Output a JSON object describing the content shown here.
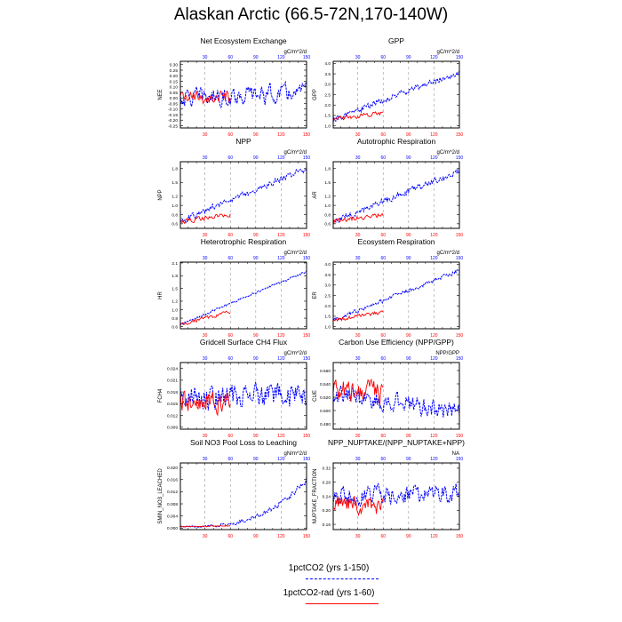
{
  "title": "Alaskan Arctic (66.5-72N,170-140W)",
  "colors": {
    "run_a": "#0000ff",
    "run_b": "#ff0000"
  },
  "legend": {
    "run_a": "1pctCO2 (yrs 1-150)",
    "run_b": "1pctCO2-rad (yrs 1-60)"
  },
  "chart_data": [
    {
      "type": "line",
      "title": "Net Ecosystem Exchange",
      "ylabel": "NEE",
      "units": "gC/m^2/d",
      "x_top_ticks": [
        30,
        60,
        90,
        120,
        150
      ],
      "x_bottom_ticks": [
        30,
        60,
        90,
        120,
        150
      ],
      "xlim": [
        1,
        150
      ],
      "y_ticks": [
        "0.30",
        "0.25",
        "0.20",
        "0.15",
        "0.10",
        "0.05",
        "0.00",
        "-0.05",
        "-0.10",
        "-0.15",
        "-0.20",
        "-0.25"
      ],
      "ylim": [
        -0.27,
        0.33
      ],
      "series": [
        {
          "run": "run_a",
          "x_range": [
            1,
            150
          ],
          "start": 0.0,
          "end": 0.05,
          "noise": 0.24
        },
        {
          "run": "run_b",
          "x_range": [
            1,
            60
          ],
          "start": 0.0,
          "end": 0.0,
          "noise": 0.16
        }
      ]
    },
    {
      "type": "line",
      "title": "GPP",
      "ylabel": "GPP",
      "units": "gC/m^2/d",
      "x_top_ticks": [
        30,
        60,
        90,
        120,
        150
      ],
      "x_bottom_ticks": [
        30,
        60,
        90,
        120,
        150
      ],
      "xlim": [
        1,
        150
      ],
      "y_ticks": [
        "4.0",
        "3.5",
        "3.0",
        "2.5",
        "2.0",
        "1.5",
        "1.0"
      ],
      "ylim": [
        0.9,
        4.1
      ],
      "series": [
        {
          "run": "run_a",
          "x_range": [
            1,
            150
          ],
          "start": 1.3,
          "end": 3.6,
          "noise": 0.45
        },
        {
          "run": "run_b",
          "x_range": [
            1,
            60
          ],
          "start": 1.3,
          "end": 1.6,
          "noise": 0.35
        }
      ]
    },
    {
      "type": "line",
      "title": "NPP",
      "ylabel": "NPP",
      "units": "gC/m^2/d",
      "x_top_ticks": [
        30,
        60,
        90,
        120,
        150
      ],
      "x_bottom_ticks": [
        30,
        60,
        90,
        120,
        150
      ],
      "xlim": [
        1,
        150
      ],
      "y_ticks": [
        "1.8",
        "1.5",
        "1.2",
        "1.0",
        "0.8",
        "0.6"
      ],
      "ylim": [
        0.5,
        1.95
      ],
      "series": [
        {
          "run": "run_a",
          "x_range": [
            1,
            150
          ],
          "start": 0.65,
          "end": 1.8,
          "noise": 0.2
        },
        {
          "run": "run_b",
          "x_range": [
            1,
            60
          ],
          "start": 0.65,
          "end": 0.8,
          "noise": 0.15
        }
      ]
    },
    {
      "type": "line",
      "title": "Autotrophic Respiration",
      "ylabel": "AR",
      "units": "gC/m^2/d",
      "x_top_ticks": [
        30,
        60,
        90,
        120,
        150
      ],
      "x_bottom_ticks": [
        30,
        60,
        90,
        120,
        150
      ],
      "xlim": [
        1,
        150
      ],
      "y_ticks": [
        "1.8",
        "1.5",
        "1.2",
        "1.0",
        "0.8",
        "0.6"
      ],
      "ylim": [
        0.5,
        1.95
      ],
      "series": [
        {
          "run": "run_a",
          "x_range": [
            1,
            150
          ],
          "start": 0.65,
          "end": 1.75,
          "noise": 0.2
        },
        {
          "run": "run_b",
          "x_range": [
            1,
            60
          ],
          "start": 0.65,
          "end": 0.8,
          "noise": 0.15
        }
      ]
    },
    {
      "type": "line",
      "title": "Heterotrophic Respiration",
      "ylabel": "HR",
      "units": "gC/m^2/d",
      "x_top_ticks": [
        30,
        60,
        90,
        120,
        150
      ],
      "x_bottom_ticks": [
        30,
        60,
        90,
        120,
        150
      ],
      "xlim": [
        1,
        150
      ],
      "y_ticks": [
        "2.1",
        "1.8",
        "1.5",
        "1.2",
        "1.0",
        "0.8",
        "0.6"
      ],
      "ylim": [
        0.55,
        2.12
      ],
      "series": [
        {
          "run": "run_a",
          "x_range": [
            1,
            150
          ],
          "start": 0.65,
          "end": 1.9,
          "noise": 0.08
        },
        {
          "run": "run_b",
          "x_range": [
            1,
            60
          ],
          "start": 0.65,
          "end": 0.95,
          "noise": 0.12
        }
      ]
    },
    {
      "type": "line",
      "title": "Ecosystem Respiration",
      "ylabel": "ER",
      "units": "gC/m^2/d",
      "x_top_ticks": [
        30,
        60,
        90,
        120,
        150
      ],
      "x_bottom_ticks": [
        30,
        60,
        90,
        120,
        150
      ],
      "xlim": [
        1,
        150
      ],
      "y_ticks": [
        "4.0",
        "3.5",
        "3.0",
        "2.5",
        "2.0",
        "1.5",
        "1.0"
      ],
      "ylim": [
        0.9,
        4.1
      ],
      "series": [
        {
          "run": "run_a",
          "x_range": [
            1,
            150
          ],
          "start": 1.3,
          "end": 3.7,
          "noise": 0.3
        },
        {
          "run": "run_b",
          "x_range": [
            1,
            60
          ],
          "start": 1.3,
          "end": 1.7,
          "noise": 0.3
        }
      ]
    },
    {
      "type": "line",
      "title": "Gridcell Surface CH4 Flux",
      "ylabel": "FCH4",
      "units": "gC/m^2/d",
      "x_top_ticks": [
        30,
        60,
        90,
        120,
        150
      ],
      "x_bottom_ticks": [
        30,
        60,
        90,
        120,
        150
      ],
      "xlim": [
        1,
        150
      ],
      "y_ticks": [
        "0.024",
        "0.021",
        "0.018",
        "0.015",
        "0.012",
        "0.009"
      ],
      "ylim": [
        0.0085,
        0.0255
      ],
      "series": [
        {
          "run": "run_a",
          "x_range": [
            1,
            150
          ],
          "start": 0.0165,
          "end": 0.017,
          "noise": 0.009
        },
        {
          "run": "run_b",
          "x_range": [
            1,
            60
          ],
          "start": 0.0155,
          "end": 0.0155,
          "noise": 0.008
        }
      ]
    },
    {
      "type": "line",
      "title": "Carbon Use Efficiency (NPP/GPP)",
      "ylabel": "CUE",
      "units": "NPP/GPP",
      "x_top_ticks": [
        30,
        60,
        90,
        120,
        150
      ],
      "x_bottom_ticks": [
        30,
        60,
        90,
        120,
        150
      ],
      "xlim": [
        1,
        150
      ],
      "y_ticks": [
        "0.560",
        "0.540",
        "0.520",
        "0.500",
        "0.480"
      ],
      "ylim": [
        0.472,
        0.572
      ],
      "series": [
        {
          "run": "run_a",
          "x_range": [
            1,
            150
          ],
          "start": 0.525,
          "end": 0.498,
          "noise": 0.04
        },
        {
          "run": "run_b",
          "x_range": [
            1,
            60
          ],
          "start": 0.53,
          "end": 0.525,
          "noise": 0.05
        }
      ]
    },
    {
      "type": "line",
      "title": "Soil NO3 Pool Loss to Leaching",
      "ylabel": "SMIN_NO3_LEACHED",
      "units": "gN/m^2/d",
      "x_top_ticks": [
        30,
        60,
        90,
        120,
        150
      ],
      "x_bottom_ticks": [
        30,
        60,
        90,
        120,
        150
      ],
      "xlim": [
        1,
        150
      ],
      "y_ticks": [
        "0.020",
        "0.016",
        "0.012",
        "0.008",
        "0.004",
        "0.000"
      ],
      "ylim": [
        -0.0005,
        0.0215
      ],
      "series": [
        {
          "run": "run_a",
          "x_range": [
            1,
            150
          ],
          "start": 0.0005,
          "end": 0.016,
          "noise": 0.003,
          "shape": "exp"
        },
        {
          "run": "run_b",
          "x_range": [
            1,
            60
          ],
          "start": 0.0004,
          "end": 0.0008,
          "noise": 0.0004
        }
      ]
    },
    {
      "type": "line",
      "title": "NPP_NUPTAKE/(NPP_NUPTAKE+NPP)",
      "ylabel": "NUPTAKE_FRACTION",
      "units": "NA",
      "x_top_ticks": [
        30,
        60,
        90,
        120,
        150
      ],
      "x_bottom_ticks": [
        30,
        60,
        90,
        120,
        150
      ],
      "xlim": [
        1,
        150
      ],
      "y_ticks": [
        "0.32",
        "0.28",
        "0.24",
        "0.20",
        "0.16"
      ],
      "ylim": [
        0.145,
        0.335
      ],
      "series": [
        {
          "run": "run_a",
          "x_range": [
            1,
            150
          ],
          "start": 0.24,
          "end": 0.25,
          "noise": 0.075
        },
        {
          "run": "run_b",
          "x_range": [
            1,
            60
          ],
          "start": 0.22,
          "end": 0.21,
          "noise": 0.07
        }
      ]
    }
  ]
}
